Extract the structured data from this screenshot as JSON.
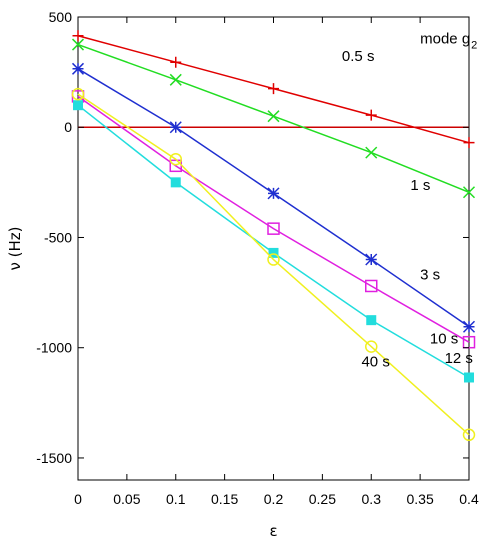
{
  "chart_data": {
    "type": "line",
    "title": "",
    "xlabel": "ε",
    "ylabel": "ν (Hz)",
    "xlim": [
      0,
      0.4
    ],
    "ylim": [
      -1600,
      500
    ],
    "xticks": [
      0,
      0.05,
      0.1,
      0.15,
      0.2,
      0.25,
      0.3,
      0.35,
      0.4
    ],
    "xtick_labels": [
      "0",
      "0.05",
      "0.1",
      "0.15",
      "0.2",
      "0.25",
      "0.3",
      "0.35",
      "0.4"
    ],
    "yticks": [
      500,
      0,
      -500,
      -1000,
      -1500
    ],
    "ytick_labels": [
      "500",
      "0",
      "-500",
      "-1000",
      "-1500"
    ],
    "grid": false,
    "legend": "none",
    "reference_line": {
      "y": 0,
      "color": "#cc0000"
    },
    "mode_label": {
      "text": "mode g",
      "sub": "2"
    },
    "series": [
      {
        "name": "0.5 s",
        "color": "#e00000",
        "marker": "plus",
        "x": [
          0,
          0.1,
          0.2,
          0.3,
          0.4
        ],
        "y": [
          415,
          295,
          175,
          55,
          -70
        ]
      },
      {
        "name": "1 s",
        "color": "#22dd22",
        "marker": "cross",
        "x": [
          0,
          0.1,
          0.2,
          0.3,
          0.4
        ],
        "y": [
          375,
          215,
          50,
          -115,
          -295
        ]
      },
      {
        "name": "3 s",
        "color": "#1f2fd0",
        "marker": "asterisk",
        "x": [
          0,
          0.1,
          0.2,
          0.3,
          0.4
        ],
        "y": [
          265,
          0,
          -300,
          -600,
          -905
        ]
      },
      {
        "name": "10 s",
        "color": "#e020e0",
        "marker": "open-square",
        "x": [
          0,
          0.1,
          0.2,
          0.3,
          0.4
        ],
        "y": [
          140,
          -175,
          -460,
          -720,
          -975
        ]
      },
      {
        "name": "12 s",
        "color": "#22dddd",
        "marker": "filled-square",
        "x": [
          0,
          0.1,
          0.2,
          0.3,
          0.4
        ],
        "y": [
          100,
          -250,
          -570,
          -875,
          -1135
        ]
      },
      {
        "name": "40 s",
        "color": "#f0f020",
        "marker": "open-circle",
        "x": [
          0,
          0.1,
          0.2,
          0.3,
          0.4
        ],
        "y": [
          150,
          -145,
          -600,
          -995,
          -1395
        ]
      }
    ]
  }
}
